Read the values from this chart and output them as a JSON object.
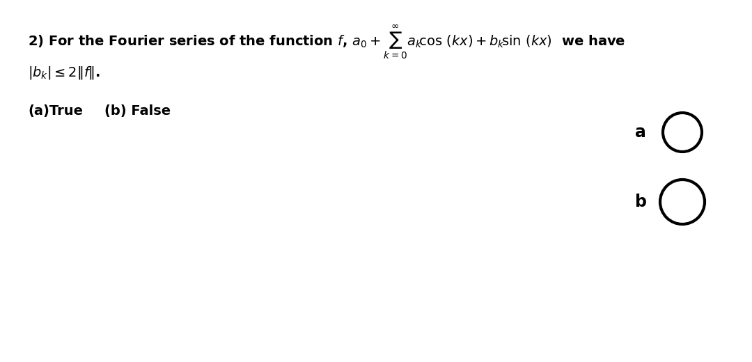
{
  "background_color": "#ffffff",
  "line1_plain": "2) For the Fourier series of the function ",
  "line1_math": "$f$, $a_0 + \\sum_{k=0}^{\\infty} a_k$cos $(kx) + b_k$sin $(kx)$  we have",
  "line2": "$|b_k| \\leq 2\\|f\\|$.",
  "line3_a": "(a)True",
  "line3_b": "(b) False",
  "label_a": "a",
  "label_b": "b",
  "text_fontsize": 14,
  "label_fontsize": 17,
  "circle_linewidth": 3.0
}
